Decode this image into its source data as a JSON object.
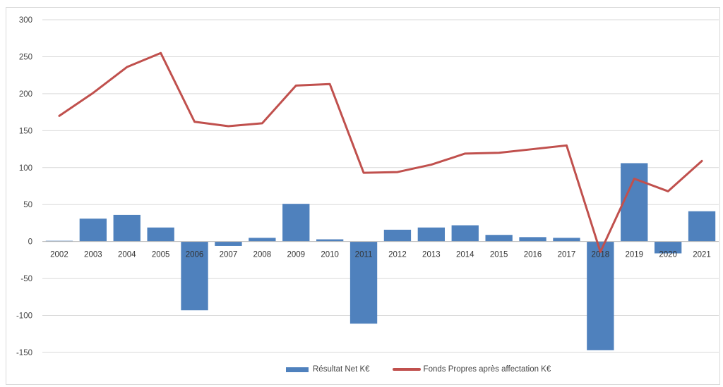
{
  "chart_data": {
    "type": "bar",
    "categories": [
      "2002",
      "2003",
      "2004",
      "2005",
      "2006",
      "2007",
      "2008",
      "2009",
      "2010",
      "2011",
      "2012",
      "2013",
      "2014",
      "2015",
      "2016",
      "2017",
      "2018",
      "2019",
      "2020",
      "2021"
    ],
    "series": [
      {
        "name": "Résultat Net K€",
        "kind": "bar",
        "color": "#4f81bd",
        "values": [
          1,
          31,
          36,
          19,
          -93,
          -6,
          5,
          51,
          3,
          -111,
          16,
          19,
          22,
          9,
          6,
          5,
          -147,
          106,
          -16,
          41
        ]
      },
      {
        "name": "Fonds Propres après affectation K€",
        "kind": "line",
        "color": "#c0504d",
        "values": [
          170,
          201,
          236,
          255,
          162,
          156,
          160,
          211,
          213,
          93,
          94,
          104,
          119,
          120,
          125,
          130,
          -14,
          85,
          68,
          109
        ]
      }
    ],
    "ylim": [
      -150,
      300
    ],
    "yticks": [
      300,
      250,
      200,
      150,
      100,
      50,
      0,
      -50,
      -100,
      -150
    ],
    "grid": true,
    "legend_position": "bottom"
  }
}
